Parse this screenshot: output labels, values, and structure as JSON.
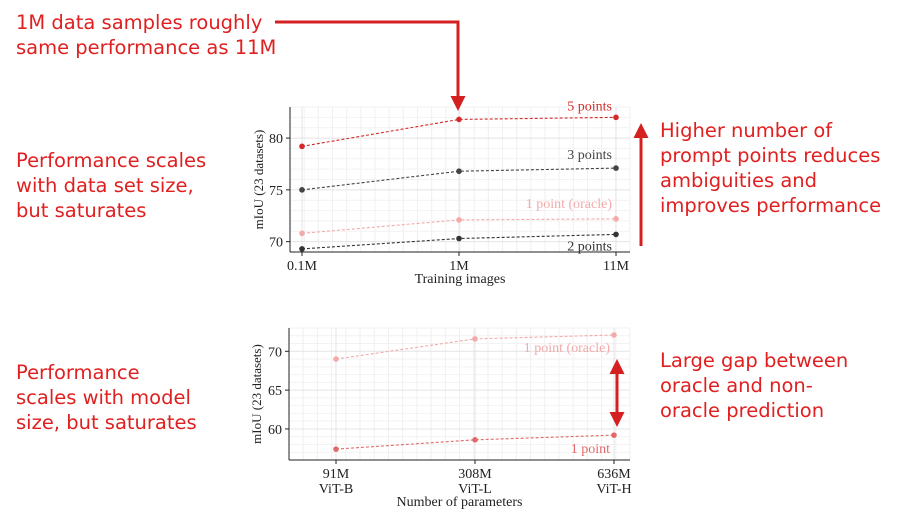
{
  "annotations": {
    "top_left": [
      "1M data samples roughly",
      "same performance as 11M"
    ],
    "left_top": [
      "Performance scales",
      "with data set size,",
      "but saturates"
    ],
    "right_top": [
      "Higher number of",
      "prompt points reduces",
      "ambiguities and",
      "improves performance"
    ],
    "left_bottom": [
      "Performance",
      "scales with model",
      "size, but saturates"
    ],
    "right_bottom": [
      "Large gap between",
      "oracle and non-",
      "oracle prediction"
    ]
  },
  "colors": {
    "annotation": "#e02020",
    "five_points": "#d42a2a",
    "three_points": "#444444",
    "two_points": "#333333",
    "oracle": "#f2aaaa",
    "one_point": "#e06a6a"
  },
  "chart_data": [
    {
      "type": "line",
      "xlabel": "Training images",
      "ylabel": "mIoU (23 datasets)",
      "x": [
        "0.1M",
        "1M",
        "11M"
      ],
      "ylim": [
        69,
        83
      ],
      "yticks": [
        70,
        75,
        80
      ],
      "grid": true,
      "series": [
        {
          "name": "5 points",
          "values": [
            79.2,
            81.8,
            82.0
          ]
        },
        {
          "name": "3 points",
          "values": [
            75.0,
            76.8,
            77.1
          ]
        },
        {
          "name": "1 point (oracle)",
          "values": [
            70.8,
            72.1,
            72.2
          ]
        },
        {
          "name": "2 points",
          "values": [
            69.3,
            70.3,
            70.7
          ]
        }
      ]
    },
    {
      "type": "line",
      "xlabel": "Number of parameters",
      "ylabel": "mIoU (23 datasets)",
      "x": [
        "91M",
        "308M",
        "636M"
      ],
      "x_sublabels": [
        "ViT-B",
        "ViT-L",
        "ViT-H"
      ],
      "ylim": [
        56,
        73
      ],
      "yticks": [
        60,
        65,
        70
      ],
      "grid": true,
      "series": [
        {
          "name": "1 point (oracle)",
          "values": [
            69.0,
            71.6,
            72.1
          ]
        },
        {
          "name": "1 point",
          "values": [
            57.4,
            58.6,
            59.2
          ]
        }
      ]
    }
  ]
}
